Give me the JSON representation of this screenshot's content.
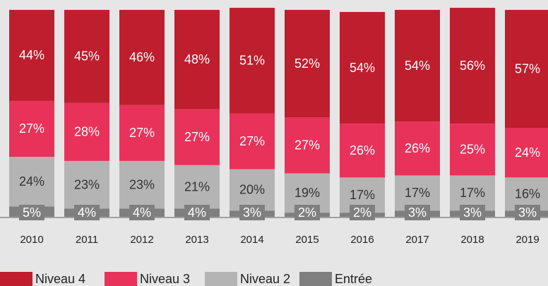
{
  "chart_data": {
    "type": "stacked_bar",
    "categories": [
      "2010",
      "2011",
      "2012",
      "2013",
      "2014",
      "2015",
      "2016",
      "2017",
      "2018",
      "2019"
    ],
    "ylim": [
      0,
      100
    ],
    "series": [
      {
        "name": "Niveau 4",
        "color": "#be1e2d",
        "label_color": "#ffffff",
        "values": [
          44,
          45,
          46,
          48,
          51,
          52,
          54,
          54,
          56,
          57
        ],
        "value_labels": [
          "44%",
          "45%",
          "46%",
          "48%",
          "51%",
          "52%",
          "54%",
          "54%",
          "56%",
          "57%"
        ]
      },
      {
        "name": "Niveau 3",
        "color": "#e8325a",
        "label_color": "#ffffff",
        "values": [
          27,
          28,
          27,
          27,
          27,
          27,
          26,
          26,
          25,
          24
        ],
        "value_labels": [
          "27%",
          "28%",
          "27%",
          "27%",
          "27%",
          "27%",
          "26%",
          "26%",
          "25%",
          "24%"
        ]
      },
      {
        "name": "Niveau 2",
        "color": "#b4b4b4",
        "label_color": "#333333",
        "values": [
          24,
          23,
          23,
          21,
          20,
          19,
          17,
          17,
          17,
          16
        ],
        "value_labels": [
          "24%",
          "23%",
          "23%",
          "21%",
          "20%",
          "19%",
          "17%",
          "17%",
          "17%",
          "16%"
        ]
      },
      {
        "name": "Entrée",
        "color": "#7f7f7f",
        "label_color": "#ffffff",
        "values": [
          5,
          4,
          4,
          4,
          3,
          2,
          2,
          3,
          3,
          3
        ],
        "value_labels": [
          "5%",
          "4%",
          "4%",
          "4%",
          "3%",
          "2%",
          "2%",
          "3%",
          "3%",
          "3%"
        ]
      }
    ]
  }
}
